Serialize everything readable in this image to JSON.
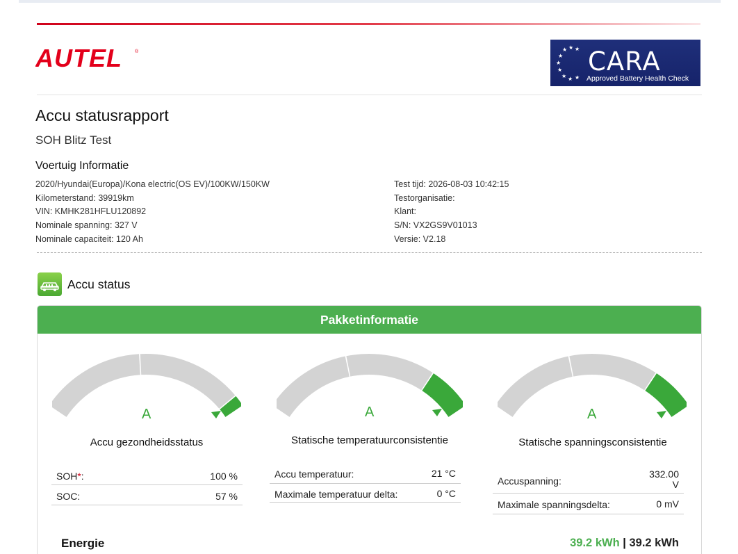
{
  "brand": {
    "autel": "AUTEL",
    "cara_word": "CARA",
    "cara_sub": "Approved Battery Health Check"
  },
  "report": {
    "title": "Accu statusrapport",
    "subtitle": "SOH Blitz Test"
  },
  "vehicle": {
    "heading": "Voertuig Informatie",
    "left": [
      "2020/Hyundai(Europa)/Kona electric(OS EV)/100KW/150KW",
      "Kilometerstand: 39919km",
      "VIN: KMHK281HFLU120892",
      "Nominale spanning: 327 V",
      "Nominale capaciteit: 120 Ah"
    ],
    "right": [
      "Test tijd: 2026-08-03 10:42:15",
      "Testorganisatie:",
      "Klant:",
      "S/N: VX2GS9V01013",
      "Versie: V2.18"
    ]
  },
  "status": {
    "title": "Accu status",
    "icon": "battery-car-icon"
  },
  "panel": {
    "title": "Pakketinformatie",
    "gauges": [
      {
        "grade": "A",
        "label": "Accu gezondheidsstatus",
        "level": 0.95,
        "rows": [
          {
            "k": "SOH",
            "req": "*",
            "colon": ":",
            "v": "100 %"
          },
          {
            "k": "SOC:",
            "v": "57 %"
          }
        ]
      },
      {
        "grade": "A",
        "label": "Statische temperatuurconsistentie",
        "level": 0.8,
        "rows": [
          {
            "k": "Accu temperatuur:",
            "v": "21 °C"
          },
          {
            "k": "Maximale temperatuur delta:",
            "v": "0 °C"
          }
        ]
      },
      {
        "grade": "A",
        "label": "Statische spanningsconsistentie",
        "level": 0.8,
        "rows": [
          {
            "k": "Accuspanning:",
            "v": "332.00",
            "v2": "V"
          },
          {
            "k": "Maximale spanningsdelta:",
            "v": "0 mV"
          }
        ]
      }
    ]
  },
  "energy": {
    "label": "Energie",
    "value_green": "39.2 kWh",
    "separator": "|",
    "value_black": "39.2 kWh"
  },
  "colors": {
    "accent_red": "#d0021b",
    "green": "#4caf50",
    "gauge_green": "#3aa83a",
    "gauge_gray": "#d3d3d3",
    "cara_blue": "#1c2a75"
  }
}
